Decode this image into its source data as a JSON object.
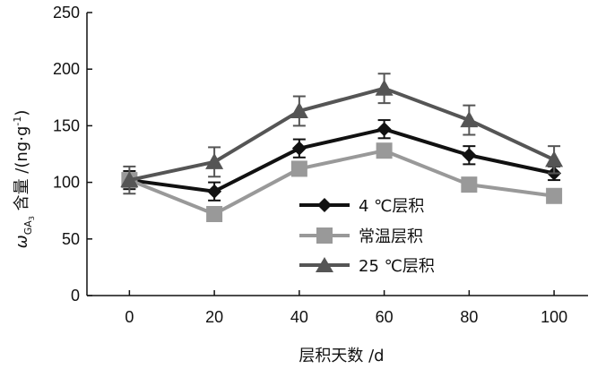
{
  "chart_data": {
    "type": "line",
    "x": [
      0,
      20,
      40,
      60,
      80,
      100
    ],
    "x_ticks": [
      "0",
      "20",
      "40",
      "60",
      "80",
      "100"
    ],
    "y_ticks": [
      "0",
      "50",
      "100",
      "150",
      "200",
      "250"
    ],
    "xlabel": "层积天数 /d",
    "ylabel": {
      "symbol": "ω",
      "subscript": "GA",
      "sub_subscript": "3",
      "text": " 含量 /(ng·g",
      "superscript": "-1",
      "close": ")"
    },
    "xlim": [
      -10,
      108
    ],
    "ylim": [
      0,
      250
    ],
    "grid": false,
    "legend_position": "center-right",
    "series": [
      {
        "name": "4 ℃层积",
        "marker": "diamond",
        "color": "#111111",
        "values": [
          102,
          92,
          130,
          147,
          124,
          108
        ],
        "errors": [
          8,
          8,
          8,
          8,
          8,
          6
        ]
      },
      {
        "name": "常温层积",
        "marker": "square",
        "color": "#999999",
        "values": [
          102,
          72,
          112,
          128,
          98,
          88
        ],
        "errors": [
          0,
          0,
          0,
          0,
          0,
          0
        ]
      },
      {
        "name": "25 ℃层积",
        "marker": "triangle",
        "color": "#555555",
        "values": [
          102,
          118,
          163,
          183,
          155,
          120
        ],
        "errors": [
          12,
          13,
          13,
          13,
          13,
          12
        ]
      }
    ]
  }
}
